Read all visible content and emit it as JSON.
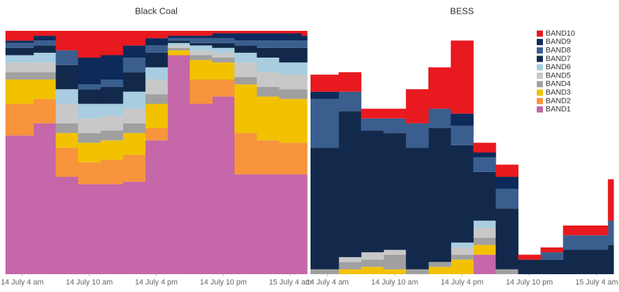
{
  "chart_data": [
    {
      "type": "stacked_step_area",
      "title": "Black Coal",
      "x": [
        3,
        5,
        7,
        9,
        11,
        13,
        15,
        17,
        19,
        21,
        23,
        25,
        27,
        29
      ],
      "xlim": [
        2.5,
        29.5
      ],
      "xticks": [
        {
          "value": 4,
          "label": "14 July 4 am"
        },
        {
          "value": 10,
          "label": "14 July 10 am"
        },
        {
          "value": 16,
          "label": "14 July 4 pm"
        },
        {
          "value": 22,
          "label": "14 July 10 pm"
        },
        {
          "value": 28,
          "label": "15 July 4 am"
        }
      ],
      "ylim": [
        0,
        100
      ],
      "series": [
        {
          "color": "#c567a8",
          "values": [
            57,
            62,
            40,
            37,
            37,
            38,
            55,
            90,
            70,
            73,
            41,
            41,
            41,
            41
          ]
        },
        {
          "color": "#f7943c",
          "values": [
            13,
            10,
            12,
            9,
            10,
            11,
            5,
            0,
            10,
            7,
            17,
            14,
            13,
            13
          ]
        },
        {
          "color": "#f2c200",
          "values": [
            10,
            8,
            6,
            8,
            8,
            9,
            10,
            2,
            8,
            7,
            20,
            18,
            18,
            18
          ]
        },
        {
          "color": "#a0a0a0",
          "values": [
            3,
            3,
            4,
            4,
            4,
            4,
            4,
            1,
            2,
            2,
            3,
            4,
            4,
            4
          ]
        },
        {
          "color": "#c8c8c8",
          "values": [
            4,
            4,
            8,
            6,
            6,
            6,
            6,
            1,
            2,
            2,
            6,
            6,
            6,
            6
          ]
        },
        {
          "color": "#a8cde0",
          "values": [
            3,
            4,
            6,
            6,
            5,
            7,
            5,
            1,
            2,
            2,
            4,
            6,
            5,
            5
          ]
        },
        {
          "color": "#13294b",
          "values": [
            3,
            3,
            10,
            6,
            7,
            8,
            6,
            1,
            1,
            2,
            3,
            4,
            6,
            6
          ]
        },
        {
          "color": "#3a5f8f",
          "values": [
            2,
            2,
            6,
            2,
            3,
            6,
            3,
            1,
            2,
            2,
            2,
            3,
            3,
            3
          ]
        },
        {
          "color": "#0d2a5a",
          "values": [
            1,
            2,
            0,
            11,
            10,
            5,
            3,
            1,
            1,
            2,
            3,
            3,
            3,
            2
          ]
        },
        {
          "color": "#e8191f",
          "values": [
            4,
            2,
            8,
            11,
            10,
            6,
            3,
            2,
            2,
            1,
            1,
            1,
            1,
            2
          ]
        }
      ]
    },
    {
      "type": "stacked_step_area",
      "title": "BESS",
      "x": [
        3,
        5,
        7,
        9,
        11,
        13,
        15,
        17,
        19,
        21,
        23,
        25,
        27,
        29
      ],
      "xlim": [
        2.5,
        29.5
      ],
      "xticks": [
        {
          "value": 4,
          "label": "14 July 4 am"
        },
        {
          "value": 10,
          "label": "14 July 10 am"
        },
        {
          "value": 16,
          "label": "14 July 4 pm"
        },
        {
          "value": 22,
          "label": "14 July 10 pm"
        },
        {
          "value": 28,
          "label": "15 July 4 am"
        }
      ],
      "ylim": [
        0,
        100
      ],
      "legend": "top-right",
      "series": [
        {
          "name": "BAND1",
          "color": "#c567a8",
          "values": [
            0,
            0,
            0,
            0,
            0,
            0,
            0,
            8,
            0,
            0,
            0,
            0,
            0,
            0
          ]
        },
        {
          "name": "BAND2",
          "color": "#f7943c",
          "values": [
            0,
            0,
            0,
            0,
            0,
            0,
            0,
            0,
            0,
            0,
            0,
            0,
            0,
            0
          ]
        },
        {
          "name": "BAND3",
          "color": "#f2c200",
          "values": [
            0,
            2,
            3,
            2,
            0,
            3,
            6,
            4,
            0,
            0,
            0,
            0,
            0,
            0
          ]
        },
        {
          "name": "BAND4",
          "color": "#a0a0a0",
          "values": [
            2,
            3,
            3,
            6,
            2,
            2,
            2,
            3,
            2,
            0,
            0,
            0,
            0,
            0
          ]
        },
        {
          "name": "BAND5",
          "color": "#c8c8c8",
          "values": [
            0,
            2,
            3,
            2,
            0,
            0,
            3,
            4,
            0,
            0,
            0,
            0,
            0,
            0
          ]
        },
        {
          "name": "BAND6",
          "color": "#a8cde0",
          "values": [
            0,
            0,
            0,
            0,
            0,
            0,
            2,
            3,
            0,
            0,
            0,
            0,
            0,
            0
          ]
        },
        {
          "name": "BAND7",
          "color": "#13294b",
          "values": [
            50,
            60,
            50,
            48,
            50,
            55,
            40,
            20,
            25,
            6,
            6,
            10,
            10,
            12
          ]
        },
        {
          "name": "BAND8",
          "color": "#3a5f8f",
          "values": [
            20,
            8,
            5,
            6,
            10,
            8,
            8,
            6,
            8,
            0,
            3,
            6,
            6,
            10
          ]
        },
        {
          "name": "BAND9",
          "color": "#0d2a5a",
          "values": [
            3,
            0,
            0,
            0,
            0,
            0,
            5,
            2,
            5,
            0,
            0,
            0,
            0,
            0
          ]
        },
        {
          "name": "BAND10",
          "color": "#e8191f",
          "values": [
            7,
            8,
            4,
            4,
            14,
            17,
            30,
            4,
            5,
            2,
            2,
            4,
            4,
            17
          ]
        }
      ]
    }
  ]
}
